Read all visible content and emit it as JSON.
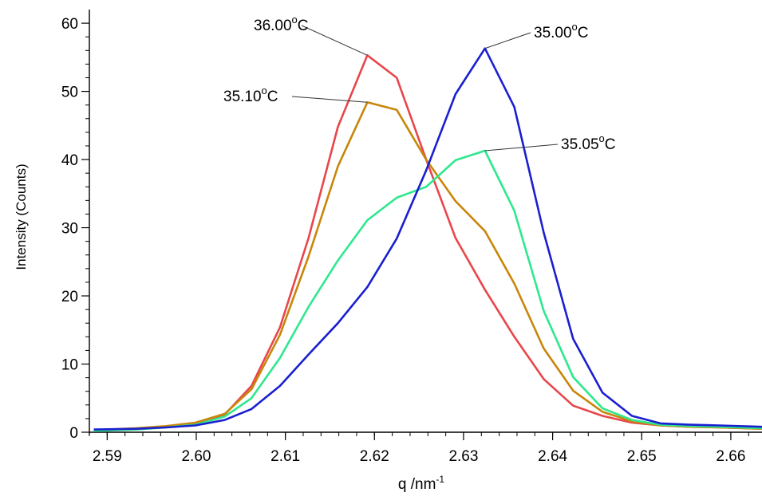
{
  "chart_data": {
    "type": "line",
    "xlabel": "q /nm",
    "xlabel_sup": "-1",
    "ylabel": "Intensity (Counts)",
    "xlim": [
      2.588,
      2.6635
    ],
    "ylim": [
      0,
      62
    ],
    "xticks": [
      2.59,
      2.6,
      2.61,
      2.62,
      2.63,
      2.64,
      2.65,
      2.66
    ],
    "xtick_labels": [
      "2.59",
      "2.60",
      "2.61",
      "2.62",
      "2.63",
      "2.64",
      "2.65",
      "2.66"
    ],
    "yticks": [
      0,
      10,
      20,
      30,
      40,
      50,
      60
    ],
    "ytick_labels": [
      "0",
      "10",
      "20",
      "30",
      "40",
      "50",
      "60"
    ],
    "grid": false,
    "series": [
      {
        "color": "#e8464a",
        "label": "36.00",
        "label_unit": "C",
        "label_anchor": [
          2.6192,
          55.3
        ],
        "x": [
          2.5885,
          2.5933,
          2.5966,
          2.5999,
          2.6032,
          2.6062,
          2.6094,
          2.6126,
          2.6159,
          2.6192,
          2.6225,
          2.6258,
          2.6291,
          2.6324,
          2.6357,
          2.639,
          2.6423,
          2.6456,
          2.6489,
          2.6521,
          2.6554,
          2.6587,
          2.6635
        ],
        "y": [
          0.3,
          0.5,
          0.8,
          1.3,
          2.6,
          6.8,
          15.4,
          28.5,
          44.8,
          55.3,
          52.0,
          40.0,
          28.5,
          20.9,
          14.0,
          7.8,
          3.9,
          2.4,
          1.4,
          1.0,
          0.8,
          0.7,
          0.5
        ]
      },
      {
        "color": "#c8860a",
        "label": "35.10",
        "label_unit": "C",
        "label_anchor": [
          2.6192,
          48.4
        ],
        "x": [
          2.5885,
          2.5933,
          2.5966,
          2.5999,
          2.6032,
          2.6062,
          2.6094,
          2.6126,
          2.6159,
          2.6192,
          2.6225,
          2.6258,
          2.6291,
          2.6324,
          2.6357,
          2.639,
          2.6423,
          2.6456,
          2.6489,
          2.6521,
          2.6554,
          2.6587,
          2.6635
        ],
        "y": [
          0.3,
          0.6,
          0.9,
          1.4,
          2.7,
          6.3,
          14.3,
          25.8,
          39.0,
          48.4,
          47.3,
          40.0,
          33.9,
          29.5,
          21.8,
          12.3,
          6.1,
          3.0,
          1.6,
          1.0,
          0.8,
          0.7,
          0.5
        ]
      },
      {
        "color": "#2ee88e",
        "label": "35.05",
        "label_unit": "C",
        "label_anchor": [
          2.6324,
          41.3
        ],
        "x": [
          2.5885,
          2.5933,
          2.5966,
          2.5999,
          2.6032,
          2.6062,
          2.6094,
          2.6126,
          2.6159,
          2.6192,
          2.6225,
          2.6258,
          2.6291,
          2.6324,
          2.6357,
          2.639,
          2.6423,
          2.6456,
          2.6489,
          2.6521,
          2.6554,
          2.6587,
          2.6635
        ],
        "y": [
          0.2,
          0.4,
          0.7,
          1.1,
          2.3,
          5.0,
          10.9,
          18.4,
          25.2,
          31.1,
          34.4,
          36.0,
          39.9,
          41.3,
          32.5,
          17.8,
          8.1,
          3.5,
          1.8,
          1.1,
          0.9,
          0.8,
          0.6
        ]
      },
      {
        "color": "#1a1fd0",
        "label": "35.00",
        "label_unit": "C",
        "label_anchor": [
          2.6324,
          56.3
        ],
        "x": [
          2.5885,
          2.5933,
          2.5966,
          2.5999,
          2.6032,
          2.6062,
          2.6094,
          2.6126,
          2.6159,
          2.6192,
          2.6225,
          2.6258,
          2.6291,
          2.6324,
          2.6357,
          2.639,
          2.6423,
          2.6456,
          2.6489,
          2.6521,
          2.6554,
          2.6587,
          2.6635
        ],
        "y": [
          0.4,
          0.5,
          0.7,
          1.0,
          1.8,
          3.4,
          6.8,
          11.4,
          16.0,
          21.3,
          28.4,
          38.4,
          49.6,
          56.3,
          47.7,
          29.3,
          13.7,
          5.8,
          2.4,
          1.3,
          1.1,
          1.0,
          0.8
        ]
      }
    ]
  }
}
